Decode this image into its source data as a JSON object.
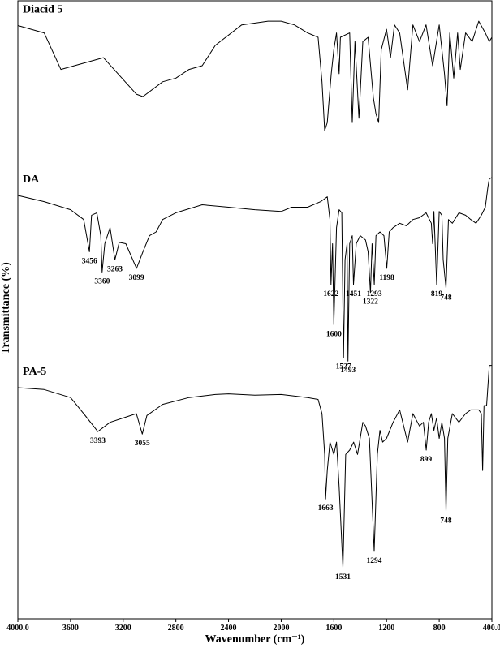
{
  "chart_data": {
    "type": "line",
    "xlabel": "Wavenumber (cm⁻¹)",
    "ylabel": "Transmittance (%)",
    "xlim": [
      4000,
      400
    ],
    "xticks": [
      {
        "value": 4000,
        "label": "4000.0"
      },
      3600,
      3200,
      2800,
      2400,
      2000,
      1600,
      1200,
      800,
      {
        "value": 400,
        "label": "400.0"
      }
    ],
    "ylim": [
      0,
      100
    ],
    "series": [
      {
        "name": "Diacid 5",
        "color": "#000000",
        "x": [
          4000,
          3800,
          3673,
          3350,
          3100,
          3050,
          2900,
          2800,
          2700,
          2600,
          2500,
          2300,
          2100,
          2000,
          1900,
          1800,
          1720,
          1690,
          1670,
          1650,
          1620,
          1600,
          1580,
          1560,
          1550,
          1480,
          1460,
          1440,
          1410,
          1380,
          1340,
          1300,
          1280,
          1260,
          1240,
          1200,
          1170,
          1140,
          1100,
          1040,
          1000,
          950,
          900,
          850,
          800,
          760,
          740,
          720,
          690,
          660,
          640,
          600,
          550,
          500,
          450,
          420,
          400
        ],
        "values": [
          96,
          94.8,
          88.9,
          90.8,
          84.9,
          84.5,
          86.9,
          87.5,
          88.9,
          89.5,
          92.8,
          96.1,
          96.7,
          96.7,
          96.1,
          94.8,
          94.1,
          86.9,
          79,
          80.3,
          88.2,
          92.1,
          94.8,
          88.2,
          94.1,
          94.8,
          80.3,
          93.4,
          81,
          93.4,
          94.1,
          84.3,
          81.7,
          80.3,
          92.1,
          95.4,
          90.8,
          96.1,
          94.8,
          85.6,
          96.1,
          93.4,
          96.1,
          89.5,
          96.1,
          88.2,
          83,
          94.8,
          87.5,
          94.8,
          88.9,
          94.8,
          93.4,
          96.7,
          94.8,
          93.4,
          94.1
        ]
      },
      {
        "name": "DA",
        "color": "#000000",
        "x": [
          4000,
          3800,
          3600,
          3500,
          3456,
          3440,
          3400,
          3370,
          3360,
          3340,
          3300,
          3263,
          3230,
          3180,
          3099,
          3050,
          3000,
          2950,
          2900,
          2800,
          2600,
          2400,
          2200,
          2000,
          1920,
          1800,
          1700,
          1650,
          1630,
          1622,
          1610,
          1600,
          1580,
          1560,
          1540,
          1527,
          1515,
          1500,
          1493,
          1480,
          1460,
          1451,
          1430,
          1400,
          1360,
          1340,
          1322,
          1310,
          1293,
          1280,
          1250,
          1220,
          1198,
          1180,
          1150,
          1100,
          1050,
          1000,
          950,
          900,
          860,
          850,
          840,
          819,
          800,
          780,
          770,
          748,
          730,
          700,
          650,
          600,
          560,
          520,
          480,
          450,
          430,
          420,
          400
        ],
        "values": [
          68.5,
          67.5,
          66.2,
          64.6,
          59.4,
          65.3,
          65.7,
          62,
          56.1,
          60.7,
          63.3,
          58.1,
          60.9,
          60.7,
          56.7,
          59.4,
          62,
          62.6,
          64.6,
          65.7,
          67,
          66.6,
          66.2,
          65.9,
          66.6,
          66.6,
          67.5,
          68.3,
          64.6,
          54.1,
          60.7,
          47.6,
          63.3,
          66.2,
          65.7,
          42.3,
          58.1,
          60.7,
          41.7,
          60.7,
          62,
          54.1,
          60.7,
          62,
          61.3,
          59.4,
          52.8,
          60.7,
          54.1,
          62,
          62.6,
          62,
          56.7,
          62.6,
          63.3,
          64,
          63.6,
          64.6,
          64.9,
          65.7,
          64,
          60.7,
          65.9,
          54.1,
          65.9,
          65.3,
          58.1,
          53.5,
          64.6,
          64,
          65.7,
          65.3,
          64.6,
          64,
          65.3,
          66.6,
          69.9,
          71.2,
          71.4
        ],
        "peaks": [
          3456,
          3360,
          3263,
          3099,
          1622,
          1600,
          1527,
          1493,
          1451,
          1322,
          1293,
          1198,
          819,
          748
        ]
      },
      {
        "name": "PA-5",
        "color": "#000000",
        "x": [
          4000,
          3800,
          3600,
          3500,
          3393,
          3300,
          3200,
          3100,
          3055,
          3020,
          2900,
          2700,
          2500,
          2400,
          2200,
          2000,
          1800,
          1720,
          1690,
          1670,
          1663,
          1650,
          1630,
          1600,
          1580,
          1560,
          1531,
          1510,
          1480,
          1450,
          1420,
          1380,
          1360,
          1330,
          1294,
          1270,
          1250,
          1230,
          1200,
          1150,
          1100,
          1040,
          1000,
          950,
          920,
          899,
          880,
          860,
          840,
          820,
          800,
          780,
          760,
          748,
          735,
          700,
          650,
          600,
          560,
          500,
          480,
          470,
          460,
          440,
          420,
          400
        ],
        "values": [
          37.4,
          37.1,
          35.8,
          33.2,
          30.3,
          31.8,
          32.5,
          33.2,
          29.9,
          32.9,
          34.7,
          35.8,
          36.3,
          36.4,
          36.2,
          36.3,
          35.8,
          35.5,
          33.2,
          26.6,
          19.4,
          24,
          28.6,
          26.6,
          28.6,
          21.4,
          8.3,
          26.6,
          27.3,
          28.6,
          26.6,
          31.8,
          31.2,
          29.2,
          10.9,
          26.6,
          30.5,
          28.6,
          29.2,
          31.8,
          33.8,
          28.6,
          33.2,
          31.2,
          31.8,
          27.3,
          31.8,
          33.2,
          30.5,
          32.5,
          29.2,
          31.8,
          29.2,
          17.4,
          29.2,
          33.2,
          31.8,
          33.2,
          33.8,
          33.8,
          33.2,
          24,
          34.5,
          34.5,
          41,
          41
        ],
        "peaks": [
          3393,
          3055,
          1663,
          1531,
          1294,
          899,
          748
        ]
      }
    ]
  }
}
